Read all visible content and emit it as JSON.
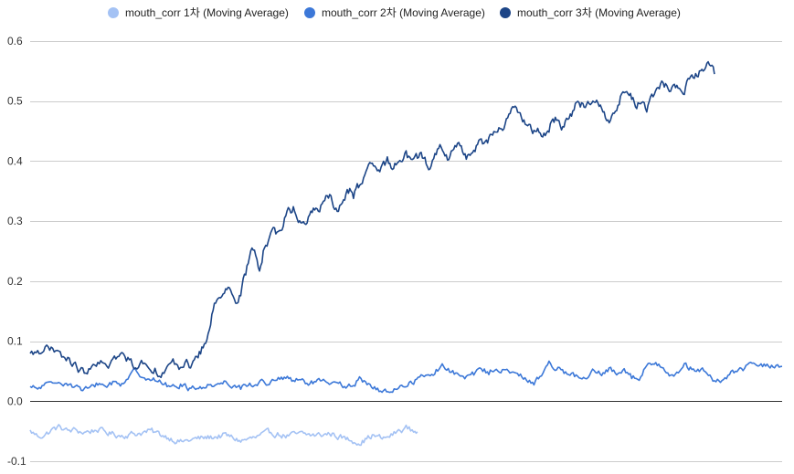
{
  "chart_data": {
    "type": "line",
    "legend_position": "top",
    "grid": true,
    "ylim": [
      -0.1,
      0.6
    ],
    "yticks": [
      -0.1,
      0.0,
      0.1,
      0.2,
      0.3,
      0.4,
      0.5,
      0.6
    ],
    "ytick_labels": [
      "-0.1",
      "0.0",
      "0.1",
      "0.2",
      "0.3",
      "0.4",
      "0.5",
      "0.6"
    ],
    "x_domain": [
      0,
      1
    ],
    "series": [
      {
        "name": "mouth_corr 1차 (Moving Average)",
        "color": "#a4c2f4",
        "noise": 0.004,
        "points": [
          [
            0.0,
            -0.05
          ],
          [
            0.01,
            -0.058
          ],
          [
            0.02,
            -0.056
          ],
          [
            0.03,
            -0.047
          ],
          [
            0.04,
            -0.043
          ],
          [
            0.05,
            -0.05
          ],
          [
            0.06,
            -0.048
          ],
          [
            0.07,
            -0.052
          ],
          [
            0.08,
            -0.05
          ],
          [
            0.09,
            -0.047
          ],
          [
            0.1,
            -0.052
          ],
          [
            0.12,
            -0.057
          ],
          [
            0.14,
            -0.054
          ],
          [
            0.16,
            -0.05
          ],
          [
            0.18,
            -0.058
          ],
          [
            0.2,
            -0.068
          ],
          [
            0.22,
            -0.063
          ],
          [
            0.24,
            -0.06
          ],
          [
            0.26,
            -0.057
          ],
          [
            0.28,
            -0.066
          ],
          [
            0.3,
            -0.061
          ],
          [
            0.32,
            -0.052
          ],
          [
            0.34,
            -0.058
          ],
          [
            0.36,
            -0.055
          ],
          [
            0.38,
            -0.057
          ],
          [
            0.4,
            -0.054
          ],
          [
            0.42,
            -0.063
          ],
          [
            0.44,
            -0.068
          ],
          [
            0.455,
            -0.057
          ],
          [
            0.47,
            -0.063
          ],
          [
            0.48,
            -0.057
          ],
          [
            0.49,
            -0.05
          ],
          [
            0.5,
            -0.044
          ],
          [
            0.51,
            -0.05
          ],
          [
            0.515,
            -0.051
          ]
        ]
      },
      {
        "name": "mouth_corr 2차 (Moving Average)",
        "color": "#3c78d8",
        "noise": 0.004,
        "points": [
          [
            0.0,
            0.022
          ],
          [
            0.01,
            0.02
          ],
          [
            0.02,
            0.028
          ],
          [
            0.03,
            0.025
          ],
          [
            0.04,
            0.035
          ],
          [
            0.05,
            0.03
          ],
          [
            0.06,
            0.025
          ],
          [
            0.07,
            0.018
          ],
          [
            0.08,
            0.02
          ],
          [
            0.09,
            0.03
          ],
          [
            0.1,
            0.025
          ],
          [
            0.11,
            0.032
          ],
          [
            0.12,
            0.028
          ],
          [
            0.13,
            0.04
          ],
          [
            0.14,
            0.05
          ],
          [
            0.15,
            0.044
          ],
          [
            0.16,
            0.038
          ],
          [
            0.17,
            0.032
          ],
          [
            0.18,
            0.028
          ],
          [
            0.19,
            0.022
          ],
          [
            0.2,
            0.028
          ],
          [
            0.21,
            0.022
          ],
          [
            0.22,
            0.025
          ],
          [
            0.23,
            0.02
          ],
          [
            0.24,
            0.03
          ],
          [
            0.25,
            0.028
          ],
          [
            0.26,
            0.033
          ],
          [
            0.27,
            0.028
          ],
          [
            0.28,
            0.022
          ],
          [
            0.29,
            0.03
          ],
          [
            0.3,
            0.026
          ],
          [
            0.31,
            0.034
          ],
          [
            0.32,
            0.03
          ],
          [
            0.33,
            0.036
          ],
          [
            0.34,
            0.04
          ],
          [
            0.35,
            0.032
          ],
          [
            0.36,
            0.035
          ],
          [
            0.37,
            0.028
          ],
          [
            0.38,
            0.033
          ],
          [
            0.39,
            0.03
          ],
          [
            0.4,
            0.026
          ],
          [
            0.41,
            0.032
          ],
          [
            0.42,
            0.02
          ],
          [
            0.43,
            0.028
          ],
          [
            0.44,
            0.038
          ],
          [
            0.45,
            0.03
          ],
          [
            0.46,
            0.02
          ],
          [
            0.47,
            0.014
          ],
          [
            0.48,
            0.018
          ],
          [
            0.49,
            0.024
          ],
          [
            0.5,
            0.026
          ],
          [
            0.51,
            0.034
          ],
          [
            0.52,
            0.04
          ],
          [
            0.53,
            0.042
          ],
          [
            0.54,
            0.052
          ],
          [
            0.55,
            0.058
          ],
          [
            0.56,
            0.05
          ],
          [
            0.57,
            0.042
          ],
          [
            0.58,
            0.038
          ],
          [
            0.59,
            0.045
          ],
          [
            0.6,
            0.052
          ],
          [
            0.61,
            0.048
          ],
          [
            0.62,
            0.058
          ],
          [
            0.63,
            0.05
          ],
          [
            0.64,
            0.046
          ],
          [
            0.65,
            0.044
          ],
          [
            0.66,
            0.035
          ],
          [
            0.67,
            0.03
          ],
          [
            0.68,
            0.045
          ],
          [
            0.69,
            0.062
          ],
          [
            0.7,
            0.058
          ],
          [
            0.71,
            0.05
          ],
          [
            0.72,
            0.045
          ],
          [
            0.73,
            0.038
          ],
          [
            0.74,
            0.036
          ],
          [
            0.75,
            0.05
          ],
          [
            0.76,
            0.044
          ],
          [
            0.77,
            0.052
          ],
          [
            0.78,
            0.048
          ],
          [
            0.79,
            0.055
          ],
          [
            0.8,
            0.04
          ],
          [
            0.81,
            0.038
          ],
          [
            0.82,
            0.058
          ],
          [
            0.83,
            0.066
          ],
          [
            0.84,
            0.06
          ],
          [
            0.85,
            0.048
          ],
          [
            0.86,
            0.046
          ],
          [
            0.87,
            0.058
          ],
          [
            0.88,
            0.054
          ],
          [
            0.89,
            0.05
          ],
          [
            0.9,
            0.048
          ],
          [
            0.91,
            0.036
          ],
          [
            0.92,
            0.03
          ],
          [
            0.93,
            0.045
          ],
          [
            0.94,
            0.052
          ],
          [
            0.95,
            0.054
          ],
          [
            0.96,
            0.06
          ],
          [
            0.97,
            0.062
          ],
          [
            0.98,
            0.058
          ],
          [
            0.99,
            0.06
          ],
          [
            1.0,
            0.058
          ]
        ]
      },
      {
        "name": "mouth_corr 3차 (Moving Average)",
        "color": "#1c4587",
        "noise": 0.006,
        "points": [
          [
            0.0,
            0.075
          ],
          [
            0.01,
            0.085
          ],
          [
            0.02,
            0.09
          ],
          [
            0.03,
            0.082
          ],
          [
            0.04,
            0.075
          ],
          [
            0.05,
            0.07
          ],
          [
            0.06,
            0.058
          ],
          [
            0.07,
            0.048
          ],
          [
            0.08,
            0.052
          ],
          [
            0.09,
            0.058
          ],
          [
            0.1,
            0.062
          ],
          [
            0.11,
            0.068
          ],
          [
            0.12,
            0.075
          ],
          [
            0.13,
            0.07
          ],
          [
            0.14,
            0.06
          ],
          [
            0.15,
            0.065
          ],
          [
            0.16,
            0.058
          ],
          [
            0.17,
            0.05
          ],
          [
            0.18,
            0.052
          ],
          [
            0.19,
            0.06
          ],
          [
            0.2,
            0.058
          ],
          [
            0.21,
            0.064
          ],
          [
            0.215,
            0.06
          ],
          [
            0.22,
            0.07
          ],
          [
            0.225,
            0.078
          ],
          [
            0.23,
            0.09
          ],
          [
            0.235,
            0.1
          ],
          [
            0.24,
            0.13
          ],
          [
            0.245,
            0.16
          ],
          [
            0.25,
            0.175
          ],
          [
            0.255,
            0.185
          ],
          [
            0.26,
            0.193
          ],
          [
            0.265,
            0.188
          ],
          [
            0.27,
            0.178
          ],
          [
            0.275,
            0.16
          ],
          [
            0.28,
            0.178
          ],
          [
            0.285,
            0.205
          ],
          [
            0.29,
            0.23
          ],
          [
            0.295,
            0.25
          ],
          [
            0.3,
            0.24
          ],
          [
            0.305,
            0.222
          ],
          [
            0.31,
            0.25
          ],
          [
            0.315,
            0.26
          ],
          [
            0.32,
            0.282
          ],
          [
            0.325,
            0.288
          ],
          [
            0.33,
            0.278
          ],
          [
            0.335,
            0.294
          ],
          [
            0.34,
            0.308
          ],
          [
            0.345,
            0.318
          ],
          [
            0.35,
            0.322
          ],
          [
            0.355,
            0.312
          ],
          [
            0.36,
            0.298
          ],
          [
            0.365,
            0.292
          ],
          [
            0.37,
            0.302
          ],
          [
            0.375,
            0.315
          ],
          [
            0.38,
            0.328
          ],
          [
            0.385,
            0.318
          ],
          [
            0.39,
            0.332
          ],
          [
            0.395,
            0.345
          ],
          [
            0.4,
            0.338
          ],
          [
            0.405,
            0.322
          ],
          [
            0.41,
            0.315
          ],
          [
            0.415,
            0.33
          ],
          [
            0.42,
            0.345
          ],
          [
            0.425,
            0.352
          ],
          [
            0.43,
            0.342
          ],
          [
            0.435,
            0.358
          ],
          [
            0.44,
            0.362
          ],
          [
            0.445,
            0.368
          ],
          [
            0.45,
            0.382
          ],
          [
            0.455,
            0.395
          ],
          [
            0.46,
            0.388
          ],
          [
            0.465,
            0.38
          ],
          [
            0.47,
            0.392
          ],
          [
            0.475,
            0.4
          ],
          [
            0.48,
            0.39
          ],
          [
            0.485,
            0.395
          ],
          [
            0.49,
            0.402
          ],
          [
            0.495,
            0.41
          ],
          [
            0.5,
            0.415
          ],
          [
            0.505,
            0.402
          ],
          [
            0.51,
            0.395
          ],
          [
            0.515,
            0.405
          ],
          [
            0.52,
            0.41
          ],
          [
            0.525,
            0.4
          ],
          [
            0.53,
            0.392
          ],
          [
            0.535,
            0.405
          ],
          [
            0.54,
            0.412
          ],
          [
            0.545,
            0.42
          ],
          [
            0.55,
            0.41
          ],
          [
            0.555,
            0.403
          ],
          [
            0.56,
            0.415
          ],
          [
            0.565,
            0.43
          ],
          [
            0.57,
            0.425
          ],
          [
            0.575,
            0.418
          ],
          [
            0.58,
            0.406
          ],
          [
            0.585,
            0.415
          ],
          [
            0.59,
            0.425
          ],
          [
            0.595,
            0.428
          ],
          [
            0.6,
            0.432
          ],
          [
            0.605,
            0.425
          ],
          [
            0.61,
            0.436
          ],
          [
            0.615,
            0.448
          ],
          [
            0.62,
            0.442
          ],
          [
            0.625,
            0.455
          ],
          [
            0.63,
            0.462
          ],
          [
            0.635,
            0.475
          ],
          [
            0.64,
            0.485
          ],
          [
            0.645,
            0.49
          ],
          [
            0.65,
            0.482
          ],
          [
            0.655,
            0.47
          ],
          [
            0.66,
            0.458
          ],
          [
            0.665,
            0.45
          ],
          [
            0.67,
            0.448
          ],
          [
            0.675,
            0.455
          ],
          [
            0.68,
            0.445
          ],
          [
            0.685,
            0.442
          ],
          [
            0.69,
            0.455
          ],
          [
            0.695,
            0.468
          ],
          [
            0.7,
            0.472
          ],
          [
            0.705,
            0.462
          ],
          [
            0.71,
            0.455
          ],
          [
            0.715,
            0.468
          ],
          [
            0.72,
            0.48
          ],
          [
            0.725,
            0.492
          ],
          [
            0.73,
            0.502
          ],
          [
            0.735,
            0.492
          ],
          [
            0.74,
            0.488
          ],
          [
            0.745,
            0.498
          ],
          [
            0.75,
            0.505
          ],
          [
            0.755,
            0.496
          ],
          [
            0.76,
            0.488
          ],
          [
            0.765,
            0.478
          ],
          [
            0.77,
            0.472
          ],
          [
            0.775,
            0.48
          ],
          [
            0.78,
            0.49
          ],
          [
            0.785,
            0.505
          ],
          [
            0.79,
            0.515
          ],
          [
            0.795,
            0.512
          ],
          [
            0.8,
            0.505
          ],
          [
            0.805,
            0.498
          ],
          [
            0.81,
            0.495
          ],
          [
            0.815,
            0.49
          ],
          [
            0.82,
            0.485
          ],
          [
            0.825,
            0.498
          ],
          [
            0.83,
            0.512
          ],
          [
            0.835,
            0.522
          ],
          [
            0.84,
            0.53
          ],
          [
            0.845,
            0.525
          ],
          [
            0.85,
            0.52
          ],
          [
            0.855,
            0.528
          ],
          [
            0.86,
            0.522
          ],
          [
            0.865,
            0.525
          ],
          [
            0.87,
            0.522
          ],
          [
            0.875,
            0.53
          ],
          [
            0.88,
            0.538
          ],
          [
            0.885,
            0.542
          ],
          [
            0.89,
            0.548
          ],
          [
            0.895,
            0.556
          ],
          [
            0.9,
            0.56
          ],
          [
            0.905,
            0.552
          ],
          [
            0.91,
            0.545
          ]
        ]
      }
    ]
  }
}
